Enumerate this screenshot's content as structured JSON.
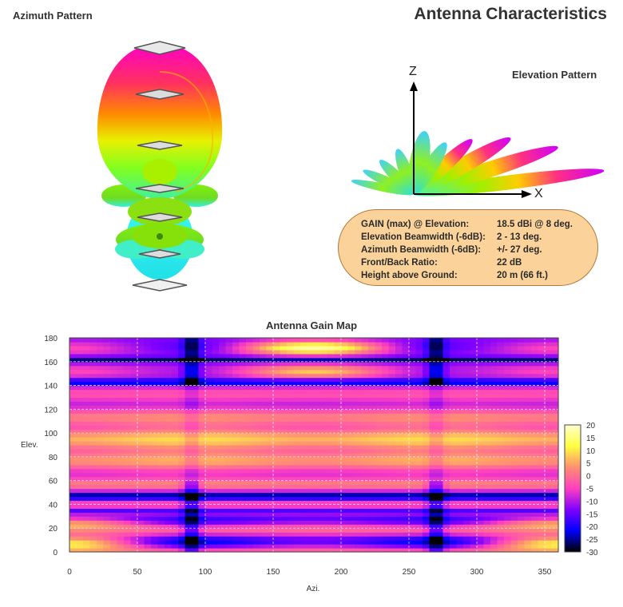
{
  "header": {
    "main_title": "Antenna Characteristics",
    "azimuth_title": "Azimuth Pattern",
    "elevation_title": "Elevation Pattern",
    "axis_z": "Z",
    "axis_x": "X"
  },
  "info": {
    "rows": [
      {
        "label": "GAIN (max) @ Elevation:",
        "value": "18.5 dBi @ 8 deg."
      },
      {
        "label": "Elevation Beamwidth (-6dB):",
        "value": "2 - 13 deg."
      },
      {
        "label": "Azimuth Beamwidth (-6dB):",
        "value": "+/- 27 deg."
      },
      {
        "label": "Front/Back Ratio:",
        "value": "22 dB"
      },
      {
        "label": "Height above Ground:",
        "value": "20 m (66 ft.)"
      }
    ]
  },
  "chart_data": {
    "type": "heatmap",
    "title": "Antenna Gain Map",
    "xlabel": "Azi.",
    "ylabel": "Elev.",
    "xlim": [
      0,
      360
    ],
    "ylim": [
      0,
      180
    ],
    "xticks": [
      0,
      50,
      100,
      150,
      200,
      250,
      300,
      350
    ],
    "yticks": [
      0,
      20,
      40,
      60,
      80,
      100,
      120,
      140,
      160,
      180
    ],
    "colorbar": {
      "min": -30,
      "max": 20,
      "ticks": [
        20,
        15,
        10,
        5,
        0,
        -5,
        -10,
        -15,
        -20,
        -25,
        -30
      ],
      "colors": [
        "#000000",
        "#0000ff",
        "#8000ff",
        "#ff40c0",
        "#ff9070",
        "#ffff40",
        "#ffffd0"
      ]
    },
    "grid": true,
    "peak": {
      "azimuth": 0,
      "elevation": 8,
      "gain_dbi": 18.5
    }
  }
}
